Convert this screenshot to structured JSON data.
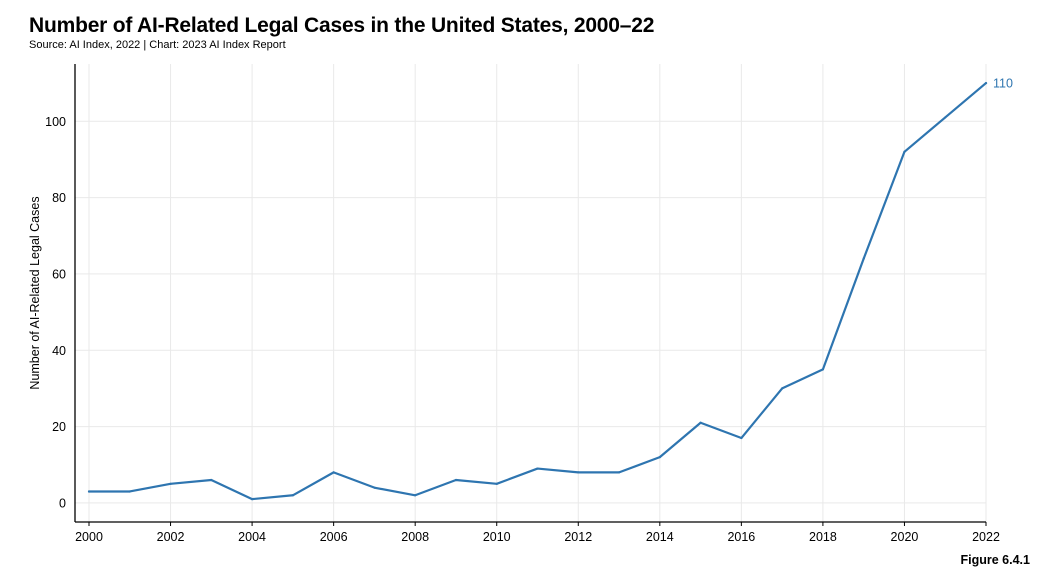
{
  "header": {
    "title": "Number of AI-Related Legal Cases in the United States, 2000–22",
    "source": "Source: AI Index, 2022 | Chart: 2023 AI Index Report"
  },
  "figure_label": "Figure 6.4.1",
  "colors": {
    "line": "#2e75b0",
    "grid": "#e9e9e9",
    "axis": "#000000"
  },
  "chart_data": {
    "type": "line",
    "title": "Number of AI-Related Legal Cases in the United States, 2000–22",
    "xlabel": "",
    "ylabel": "Number of AI-Related Legal Cases",
    "x": [
      2000,
      2001,
      2002,
      2003,
      2004,
      2005,
      2006,
      2007,
      2008,
      2009,
      2010,
      2011,
      2012,
      2013,
      2014,
      2015,
      2016,
      2017,
      2018,
      2019,
      2020,
      2021,
      2022
    ],
    "series": [
      {
        "name": "AI-Related Legal Cases",
        "values": [
          3,
          3,
          5,
          6,
          1,
          2,
          8,
          4,
          2,
          6,
          5,
          9,
          8,
          8,
          12,
          21,
          17,
          30,
          35,
          64,
          92,
          101,
          110
        ]
      }
    ],
    "xticks": [
      2000,
      2002,
      2004,
      2006,
      2008,
      2010,
      2012,
      2014,
      2016,
      2018,
      2020,
      2022
    ],
    "yticks": [
      0,
      20,
      40,
      60,
      80,
      100
    ],
    "xlim": [
      2000,
      2022
    ],
    "ylim": [
      -5,
      115
    ],
    "grid": true,
    "end_label": "110"
  }
}
